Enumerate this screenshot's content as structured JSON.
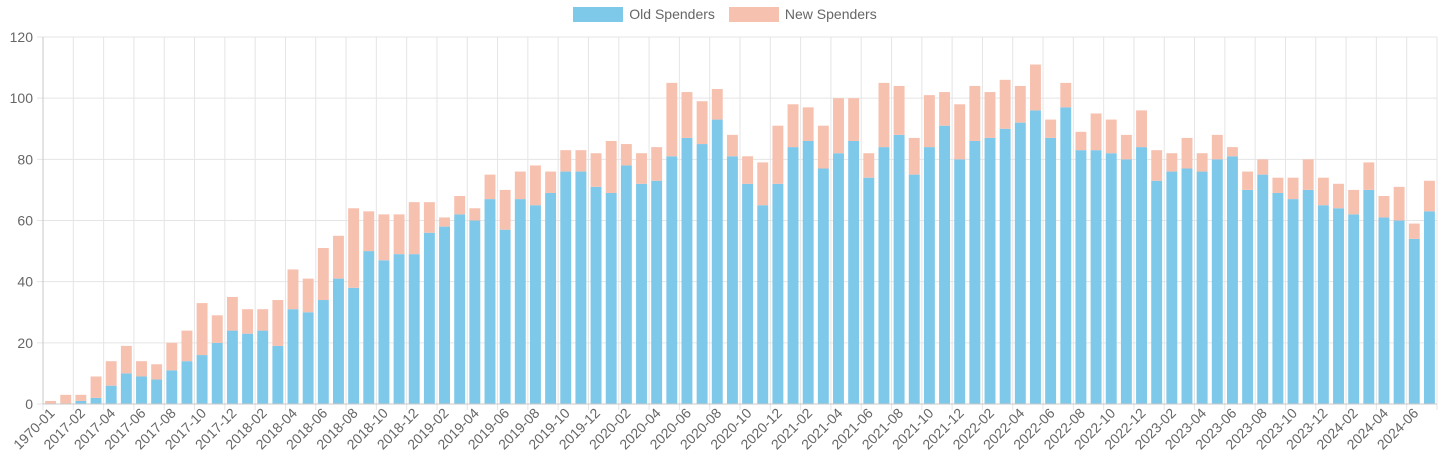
{
  "chart_data": {
    "type": "bar",
    "stacked": true,
    "legend_position": "top",
    "grid": true,
    "ylim": [
      0,
      120
    ],
    "y_ticks": [
      0,
      20,
      40,
      60,
      80,
      100,
      120
    ],
    "categories": [
      "1970-01",
      "2017-01",
      "2017-02",
      "2017-03",
      "2017-04",
      "2017-05",
      "2017-06",
      "2017-07",
      "2017-08",
      "2017-09",
      "2017-10",
      "2017-11",
      "2017-12",
      "2018-01",
      "2018-02",
      "2018-03",
      "2018-04",
      "2018-05",
      "2018-06",
      "2018-07",
      "2018-08",
      "2018-09",
      "2018-10",
      "2018-11",
      "2018-12",
      "2019-01",
      "2019-02",
      "2019-03",
      "2019-04",
      "2019-05",
      "2019-06",
      "2019-07",
      "2019-08",
      "2019-09",
      "2019-10",
      "2019-11",
      "2019-12",
      "2020-01",
      "2020-02",
      "2020-03",
      "2020-04",
      "2020-05",
      "2020-06",
      "2020-07",
      "2020-08",
      "2020-09",
      "2020-10",
      "2020-11",
      "2020-12",
      "2021-01",
      "2021-02",
      "2021-03",
      "2021-04",
      "2021-05",
      "2021-06",
      "2021-07",
      "2021-08",
      "2021-09",
      "2021-10",
      "2021-11",
      "2021-12",
      "2022-01",
      "2022-02",
      "2022-03",
      "2022-04",
      "2022-05",
      "2022-06",
      "2022-07",
      "2022-08",
      "2022-09",
      "2022-10",
      "2022-11",
      "2022-12",
      "2023-01",
      "2023-02",
      "2023-03",
      "2023-04",
      "2023-05",
      "2023-06",
      "2023-07",
      "2023-08",
      "2023-09",
      "2023-10",
      "2023-11",
      "2023-12",
      "2024-01",
      "2024-02",
      "2024-03",
      "2024-04",
      "2024-05",
      "2024-06",
      "2024-07"
    ],
    "series": [
      {
        "name": "Old Spenders",
        "color": "#7ec8ea",
        "values": [
          0,
          0,
          1,
          2,
          6,
          10,
          9,
          8,
          11,
          14,
          16,
          20,
          24,
          23,
          24,
          19,
          31,
          30,
          34,
          41,
          38,
          50,
          47,
          49,
          49,
          56,
          58,
          62,
          60,
          67,
          57,
          67,
          65,
          69,
          76,
          76,
          71,
          69,
          78,
          72,
          73,
          81,
          87,
          85,
          93,
          81,
          72,
          65,
          72,
          84,
          86,
          77,
          82,
          86,
          74,
          84,
          88,
          75,
          84,
          91,
          80,
          86,
          87,
          90,
          92,
          96,
          87,
          97,
          83,
          83,
          82,
          80,
          84,
          73,
          76,
          77,
          76,
          80,
          81,
          70,
          75,
          69,
          67,
          70,
          65,
          64,
          62,
          70,
          61,
          60,
          54,
          63
        ]
      },
      {
        "name": "New Spenders",
        "color": "#f7c1b0",
        "values": [
          1,
          3,
          2,
          7,
          8,
          9,
          5,
          5,
          9,
          10,
          17,
          9,
          11,
          8,
          7,
          15,
          13,
          11,
          17,
          14,
          26,
          13,
          15,
          13,
          17,
          10,
          3,
          6,
          4,
          8,
          13,
          9,
          13,
          7,
          7,
          7,
          11,
          17,
          7,
          10,
          11,
          24,
          15,
          14,
          10,
          7,
          9,
          14,
          19,
          14,
          11,
          14,
          18,
          14,
          8,
          21,
          16,
          12,
          17,
          11,
          18,
          18,
          15,
          16,
          12,
          15,
          6,
          8,
          6,
          12,
          11,
          8,
          12,
          10,
          6,
          10,
          6,
          8,
          3,
          6,
          5,
          5,
          7,
          10,
          9,
          8,
          8,
          9,
          7,
          11,
          5,
          10
        ]
      }
    ]
  }
}
